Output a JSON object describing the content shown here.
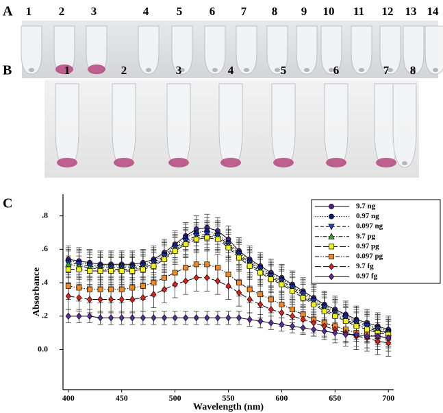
{
  "panels": {
    "A": {
      "label": "A",
      "tube_labels": [
        "1",
        "2",
        "3",
        "4",
        "5",
        "6",
        "7",
        "8",
        "9",
        "10",
        "11",
        "12",
        "13",
        "14"
      ]
    },
    "B": {
      "label": "B",
      "tube_labels": [
        "1",
        "2",
        "3",
        "4",
        "5",
        "6",
        "7",
        "8"
      ]
    },
    "C": {
      "label": "C"
    }
  },
  "chart_data": {
    "type": "line",
    "x_label": "Wavelength (nm)",
    "y_label": "Absorbance",
    "x": [
      400,
      410,
      420,
      430,
      440,
      450,
      460,
      470,
      480,
      490,
      500,
      510,
      520,
      530,
      540,
      550,
      560,
      570,
      580,
      590,
      600,
      610,
      620,
      630,
      640,
      650,
      660,
      670,
      680,
      690,
      700
    ],
    "xlim": [
      395,
      705
    ],
    "xticks": [
      400,
      450,
      500,
      550,
      600,
      650,
      700
    ],
    "ylim": [
      -0.24,
      0.93
    ],
    "yticks": [
      {
        "value": 0.8,
        "label": ".8"
      },
      {
        "value": 0.6,
        "label": ".6"
      },
      {
        "value": 0.4,
        "label": ".4"
      },
      {
        "value": 0.2,
        "label": ".2"
      },
      {
        "value": 0.0,
        "label": "0.0"
      }
    ],
    "series": [
      {
        "name": "9.7 ng",
        "color": "#4b1f8c",
        "marker": "circle",
        "dash": "solid",
        "error": 0.08,
        "values": [
          0.54,
          0.53,
          0.52,
          0.51,
          0.51,
          0.51,
          0.51,
          0.52,
          0.54,
          0.58,
          0.63,
          0.68,
          0.72,
          0.73,
          0.71,
          0.66,
          0.59,
          0.54,
          0.5,
          0.46,
          0.43,
          0.39,
          0.35,
          0.31,
          0.27,
          0.24,
          0.21,
          0.18,
          0.16,
          0.14,
          0.12
        ]
      },
      {
        "name": "0.97 ng",
        "color": "#0c1f6e",
        "marker": "circle",
        "dash": "dotted",
        "error": 0.08,
        "values": [
          0.53,
          0.52,
          0.51,
          0.5,
          0.5,
          0.5,
          0.5,
          0.51,
          0.53,
          0.57,
          0.62,
          0.67,
          0.7,
          0.71,
          0.69,
          0.64,
          0.58,
          0.53,
          0.49,
          0.45,
          0.42,
          0.38,
          0.34,
          0.3,
          0.26,
          0.23,
          0.2,
          0.17,
          0.15,
          0.13,
          0.11
        ]
      },
      {
        "name": "0.097 ng",
        "color": "#1f3fd6",
        "marker": "triangle-down",
        "dash": "dashed",
        "error": 0.08,
        "values": [
          0.52,
          0.51,
          0.5,
          0.49,
          0.49,
          0.49,
          0.49,
          0.5,
          0.52,
          0.56,
          0.61,
          0.65,
          0.68,
          0.69,
          0.68,
          0.63,
          0.57,
          0.52,
          0.48,
          0.44,
          0.41,
          0.37,
          0.33,
          0.29,
          0.25,
          0.22,
          0.19,
          0.16,
          0.14,
          0.12,
          0.1
        ]
      },
      {
        "name": "9.7 pg",
        "color": "#2ea82e",
        "marker": "triangle-up",
        "dash": "dashdot",
        "error": 0.08,
        "values": [
          0.51,
          0.5,
          0.49,
          0.48,
          0.48,
          0.48,
          0.48,
          0.49,
          0.51,
          0.55,
          0.6,
          0.64,
          0.67,
          0.68,
          0.67,
          0.62,
          0.56,
          0.51,
          0.47,
          0.43,
          0.4,
          0.36,
          0.32,
          0.28,
          0.24,
          0.21,
          0.18,
          0.15,
          0.13,
          0.11,
          0.1
        ]
      },
      {
        "name": "0.97 pg",
        "color": "#f2f21a",
        "marker": "square",
        "dash": "longdash",
        "error": 0.08,
        "values": [
          0.48,
          0.48,
          0.47,
          0.47,
          0.47,
          0.47,
          0.47,
          0.48,
          0.5,
          0.54,
          0.59,
          0.63,
          0.66,
          0.67,
          0.66,
          0.61,
          0.55,
          0.5,
          0.46,
          0.42,
          0.39,
          0.35,
          0.31,
          0.27,
          0.23,
          0.2,
          0.17,
          0.14,
          0.12,
          0.1,
          0.09
        ]
      },
      {
        "name": "0.097 pg",
        "color": "#f08a24",
        "marker": "square",
        "dash": "dashdotdot",
        "error": 0.08,
        "values": [
          0.38,
          0.37,
          0.36,
          0.36,
          0.36,
          0.36,
          0.37,
          0.38,
          0.4,
          0.43,
          0.46,
          0.49,
          0.51,
          0.51,
          0.49,
          0.45,
          0.4,
          0.36,
          0.33,
          0.3,
          0.27,
          0.24,
          0.21,
          0.18,
          0.16,
          0.14,
          0.12,
          0.1,
          0.09,
          0.08,
          0.07
        ]
      },
      {
        "name": "9.7 fg",
        "color": "#e0201c",
        "marker": "diamond",
        "dash": "longdash",
        "error": 0.08,
        "values": [
          0.32,
          0.31,
          0.3,
          0.3,
          0.3,
          0.3,
          0.3,
          0.31,
          0.33,
          0.36,
          0.39,
          0.41,
          0.43,
          0.43,
          0.41,
          0.38,
          0.34,
          0.3,
          0.27,
          0.24,
          0.22,
          0.2,
          0.18,
          0.16,
          0.14,
          0.12,
          0.1,
          0.08,
          0.07,
          0.05,
          0.04
        ]
      },
      {
        "name": "0.97 fg",
        "color": "#5a2aa0",
        "marker": "diamond",
        "dash": "solid",
        "error": 0.04,
        "values": [
          0.2,
          0.2,
          0.2,
          0.19,
          0.19,
          0.19,
          0.19,
          0.19,
          0.19,
          0.19,
          0.19,
          0.19,
          0.19,
          0.19,
          0.19,
          0.19,
          0.19,
          0.18,
          0.17,
          0.16,
          0.15,
          0.14,
          0.13,
          0.12,
          0.11,
          0.1,
          0.09,
          0.09,
          0.08,
          0.08,
          0.07
        ]
      }
    ]
  }
}
